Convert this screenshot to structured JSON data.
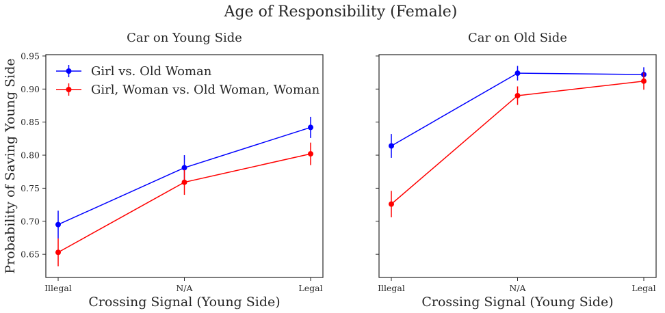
{
  "figure": {
    "title": "Age of Responsibility (Female)"
  },
  "colors": {
    "series_1": "#0000ff",
    "series_2": "#ff0000",
    "axes": "#262626"
  },
  "chart_data": [
    {
      "type": "line",
      "title": "Car on Young Side",
      "xlabel": "Crossing Signal (Young Side)",
      "ylabel": "Probability of Saving Young Side",
      "categories": [
        "Illegal",
        "N/A",
        "Legal"
      ],
      "ylim": [
        0.615,
        0.952
      ],
      "yticks": [
        0.65,
        0.7,
        0.75,
        0.8,
        0.85,
        0.9,
        0.95
      ],
      "ytick_labels": [
        "0.65",
        "0.70",
        "0.75",
        "0.80",
        "0.85",
        "0.90",
        "0.95"
      ],
      "grid": false,
      "legend": "upper-left",
      "series": [
        {
          "name": "Girl vs. Old Woman",
          "color": "#0000ff",
          "values": [
            0.695,
            0.781,
            0.842
          ],
          "errors": [
            0.021,
            0.019,
            0.016
          ]
        },
        {
          "name": "Girl, Woman vs. Old Woman, Woman",
          "color": "#ff0000",
          "values": [
            0.653,
            0.759,
            0.802
          ],
          "errors": [
            0.021,
            0.019,
            0.017
          ]
        }
      ]
    },
    {
      "type": "line",
      "title": "Car on Old Side",
      "xlabel": "Crossing Signal (Young Side)",
      "ylabel": "",
      "categories": [
        "Illegal",
        "N/A",
        "Legal"
      ],
      "ylim": [
        0.615,
        0.952
      ],
      "yticks": [
        0.65,
        0.7,
        0.75,
        0.8,
        0.85,
        0.9,
        0.95
      ],
      "ytick_labels": [],
      "grid": false,
      "legend": "none",
      "series": [
        {
          "name": "Girl vs. Old Woman",
          "color": "#0000ff",
          "values": [
            0.814,
            0.924,
            0.922
          ],
          "errors": [
            0.018,
            0.011,
            0.011
          ]
        },
        {
          "name": "Girl, Woman vs. Old Woman, Woman",
          "color": "#ff0000",
          "values": [
            0.726,
            0.89,
            0.912
          ],
          "errors": [
            0.02,
            0.014,
            0.013
          ]
        }
      ]
    }
  ]
}
